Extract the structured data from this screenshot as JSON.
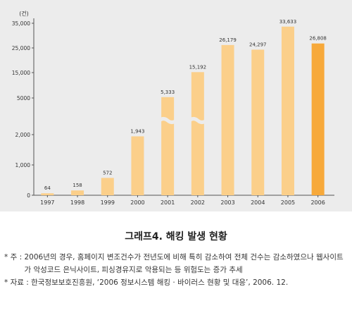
{
  "chart_data": {
    "type": "bar",
    "unit_label": "(건)",
    "categories": [
      "1997",
      "1998",
      "1999",
      "2000",
      "2001",
      "2002",
      "2003",
      "2004",
      "2005",
      "2006"
    ],
    "values": [
      64,
      158,
      572,
      1943,
      5333,
      15192,
      26179,
      24297,
      33633,
      26808
    ],
    "value_labels": [
      "64",
      "158",
      "572",
      "1,943",
      "5,333",
      "15,192",
      "26,179",
      "24,297",
      "33,633",
      "26,808"
    ],
    "y_ticks": [
      "0",
      "1,000",
      "2,000",
      "5000",
      "15,000",
      "25,000",
      "35,000"
    ],
    "axis_note": "broken (nonlinear) y-axis with wavy break marks on the 2001 and 2002 bars",
    "bar_color": "#fbcf8a",
    "highlight_color": "#f7a93a",
    "highlight_category": "2006",
    "grid": false
  },
  "caption": "그래프4. 해킹 발생 현황",
  "notes": [
    {
      "prefix": "* 주 : ",
      "text": "2006년의 경우, 홈페이지 변조건수가 전년도에 비해 특히 감소하여 전체 건수는 감소하였으나 웹사이트가 악성코드 은닉사이트, 피싱경유지로 악용되는 등 위험도는 증가 추세"
    },
    {
      "prefix": "* 자료 : ",
      "text": "한국정보보호진흥원, ‘2006 정보시스템 해킹 · 바이러스 현황 및 대응’, 2006. 12."
    }
  ]
}
